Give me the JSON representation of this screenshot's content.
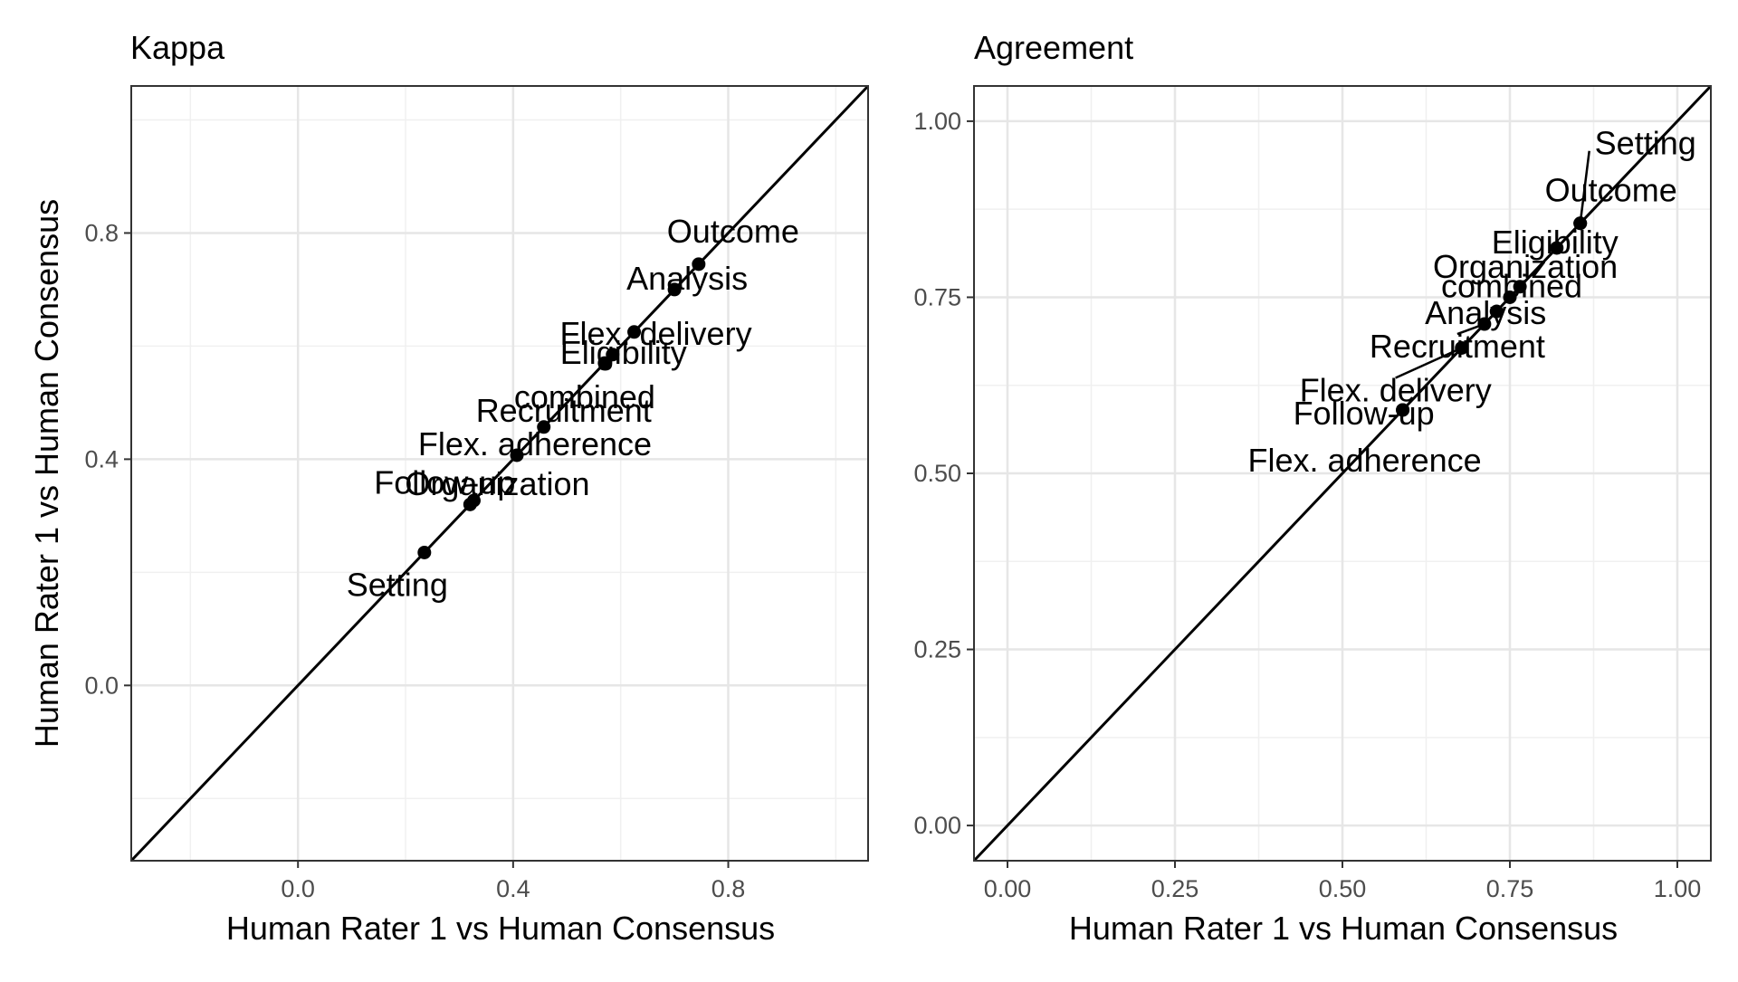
{
  "chart_data": [
    {
      "type": "scatter",
      "title": "Kappa",
      "xlabel": "Human Rater 1 vs Human Consensus",
      "ylabel": "Human Rater 1 vs Human Consensus",
      "xlim": [
        -0.31,
        1.06
      ],
      "ylim": [
        -0.31,
        1.06
      ],
      "xticks": [
        "0.0",
        "0.4",
        "0.8"
      ],
      "yticks": [
        "0.0",
        "0.4",
        "0.8"
      ],
      "grid": true,
      "reference_line": "y = x",
      "points": [
        {
          "label": "Outcome",
          "x": 0.745,
          "y": 0.745
        },
        {
          "label": "Analysis",
          "x": 0.7,
          "y": 0.7
        },
        {
          "label": "Flex. delivery",
          "x": 0.625,
          "y": 0.625
        },
        {
          "label": "Eligibility",
          "x": 0.585,
          "y": 0.585
        },
        {
          "label": "combined",
          "x": 0.57,
          "y": 0.57
        },
        {
          "label": "Recruitment",
          "x": 0.457,
          "y": 0.457
        },
        {
          "label": "Flex. adherence",
          "x": 0.407,
          "y": 0.407
        },
        {
          "label": "Organization",
          "x": 0.327,
          "y": 0.327
        },
        {
          "label": "Follow-up",
          "x": 0.32,
          "y": 0.32
        },
        {
          "label": "Setting",
          "x": 0.235,
          "y": 0.235
        }
      ]
    },
    {
      "type": "scatter",
      "title": "Agreement",
      "xlabel": "Human Rater 1 vs Human Consensus",
      "ylabel": "",
      "xlim": [
        -0.05,
        1.05
      ],
      "ylim": [
        -0.05,
        1.05
      ],
      "xticks": [
        "0.00",
        "0.25",
        "0.50",
        "0.75",
        "1.00"
      ],
      "yticks": [
        "0.00",
        "0.25",
        "0.50",
        "0.75",
        "1.00"
      ],
      "grid": true,
      "reference_line": "y = x",
      "points": [
        {
          "label": "Setting",
          "x": 0.855,
          "y": 0.855
        },
        {
          "label": "Outcome",
          "x": 0.855,
          "y": 0.855
        },
        {
          "label": "Eligibility",
          "x": 0.82,
          "y": 0.82
        },
        {
          "label": "Organization",
          "x": 0.765,
          "y": 0.765
        },
        {
          "label": "combined",
          "x": 0.75,
          "y": 0.75
        },
        {
          "label": "Analysis",
          "x": 0.73,
          "y": 0.73
        },
        {
          "label": "Recruitment",
          "x": 0.712,
          "y": 0.712
        },
        {
          "label": "Flex. delivery",
          "x": 0.678,
          "y": 0.678
        },
        {
          "label": "Follow-up",
          "x": 0.59,
          "y": 0.59
        },
        {
          "label": "Flex. adherence",
          "x": 0.59,
          "y": 0.59
        }
      ]
    }
  ]
}
